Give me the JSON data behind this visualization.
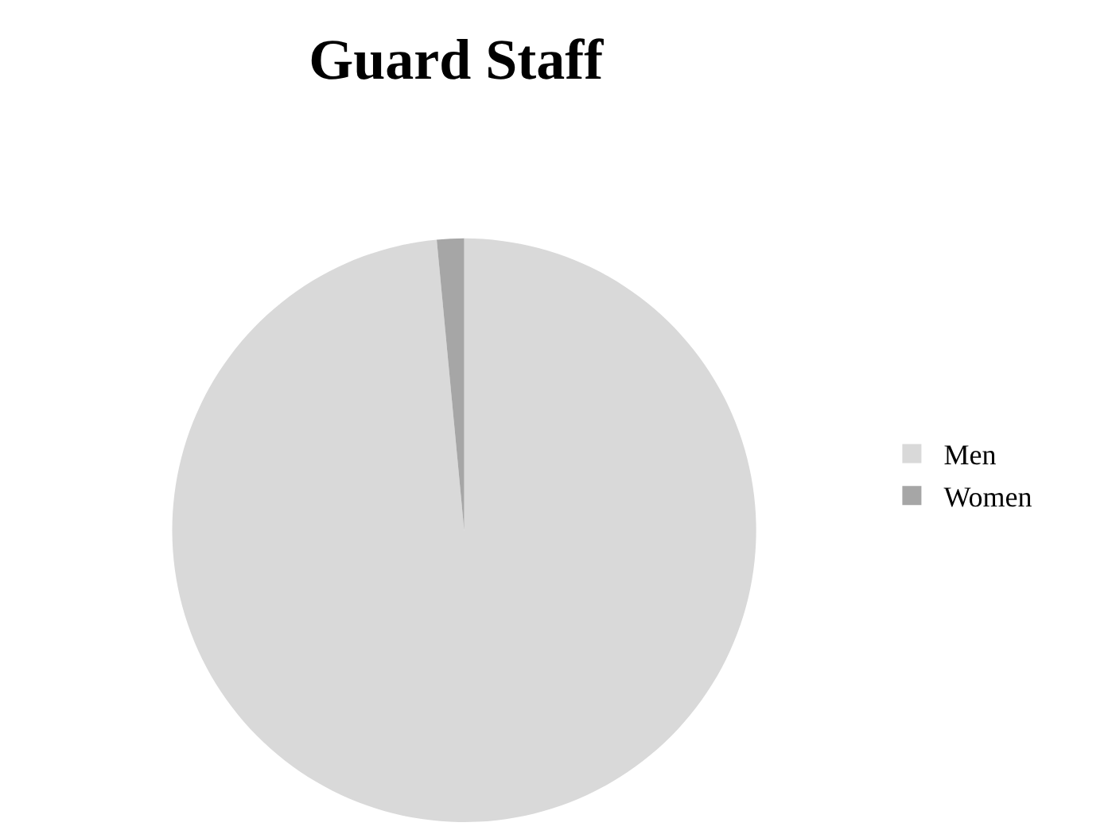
{
  "chart_data": {
    "type": "pie",
    "title": "Guard Staff",
    "categories": [
      "Men",
      "Women"
    ],
    "values": [
      98.5,
      1.5
    ],
    "colors": [
      "#d9d9d9",
      "#a6a6a6"
    ],
    "legend": "right"
  }
}
